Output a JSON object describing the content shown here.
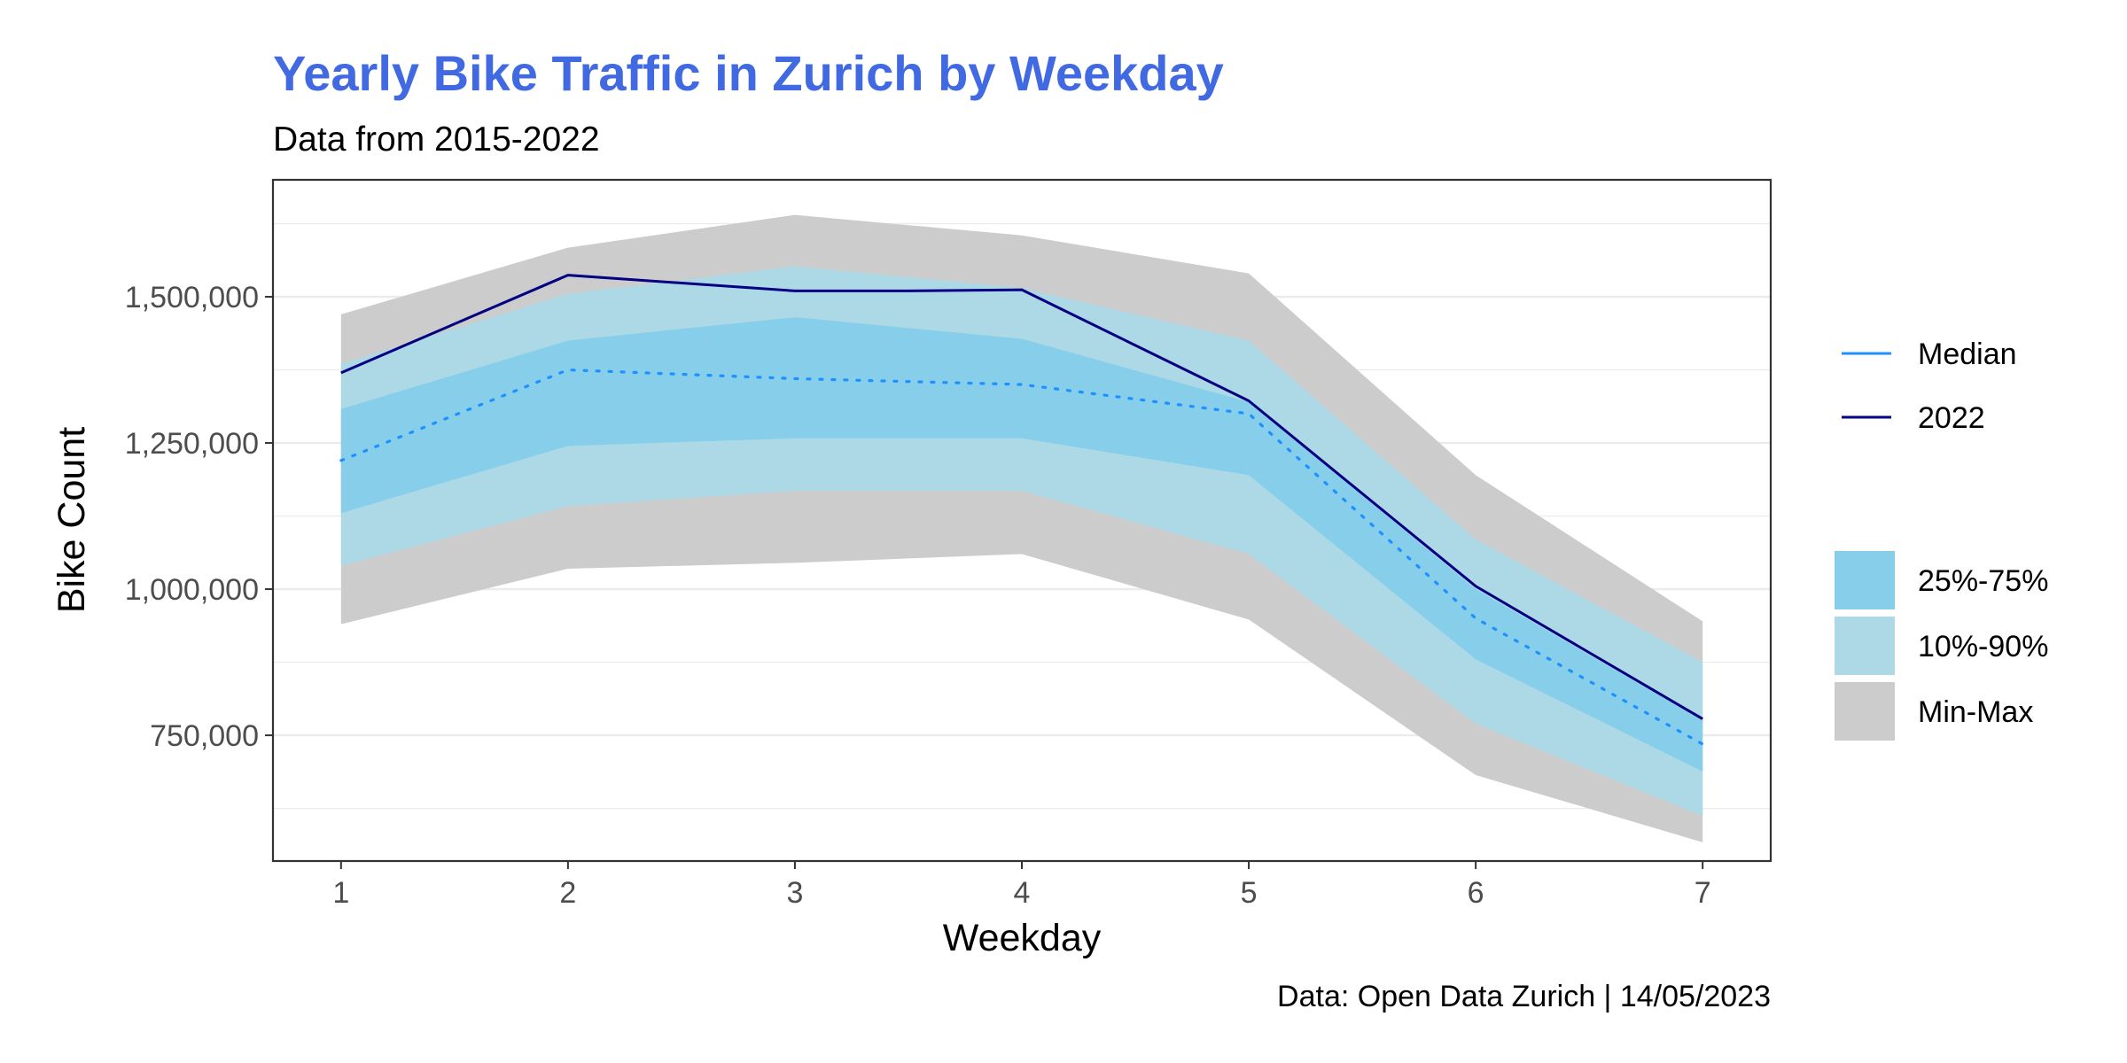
{
  "chart_data": {
    "type": "area",
    "title": "Yearly Bike Traffic in Zurich by Weekday",
    "subtitle": "Data from 2015-2022",
    "caption": "Data: Open Data Zurich | 14/05/2023",
    "xlabel": "Weekday",
    "ylabel": "Bike Count",
    "x": [
      1,
      2,
      3,
      4,
      5,
      6,
      7
    ],
    "x_ticks": [
      "1",
      "2",
      "3",
      "4",
      "5",
      "6",
      "7"
    ],
    "y_ticks": [
      750000,
      1000000,
      1250000,
      1500000
    ],
    "y_tick_labels": [
      "750,000",
      "1,000,000",
      "1,250,000",
      "1,500,000"
    ],
    "ylim": [
      535000,
      1700000
    ],
    "xlim": [
      0.7,
      7.3
    ],
    "grid": true,
    "legend_position": "right",
    "bands": [
      {
        "name": "Min-Max",
        "color": "#cccccc",
        "lower": [
          940000,
          1035000,
          1045000,
          1060000,
          948000,
          682000,
          567000
        ],
        "upper": [
          1470000,
          1584000,
          1640000,
          1605000,
          1540000,
          1195000,
          945000
        ]
      },
      {
        "name": "10%-90%",
        "color": "#add8e6",
        "lower": [
          1040000,
          1142000,
          1168000,
          1168000,
          1060000,
          770000,
          612000
        ],
        "upper": [
          1385000,
          1505000,
          1552000,
          1515000,
          1425000,
          1085000,
          875000
        ]
      },
      {
        "name": "25%-75%",
        "color": "#87ceeb",
        "lower": [
          1130000,
          1245000,
          1258000,
          1258000,
          1195000,
          880000,
          688000
        ],
        "upper": [
          1308000,
          1425000,
          1465000,
          1428000,
          1320000,
          1000000,
          775000
        ]
      }
    ],
    "series": [
      {
        "name": "Median",
        "color": "#1e90ff",
        "style": "dotted",
        "values": [
          1220000,
          1375000,
          1360000,
          1350000,
          1300000,
          950000,
          735000
        ]
      },
      {
        "name": "2022",
        "color": "#000080",
        "style": "solid",
        "x": [
          1,
          2,
          3,
          3.5,
          4,
          5,
          6,
          7
        ],
        "values": [
          1370000,
          1537000,
          1510000,
          1510000,
          1512000,
          1322000,
          1005000,
          778000
        ]
      }
    ],
    "colors": {
      "title": "#4169e1",
      "grid": "#ebebeb",
      "panel_border": "#333333"
    }
  }
}
